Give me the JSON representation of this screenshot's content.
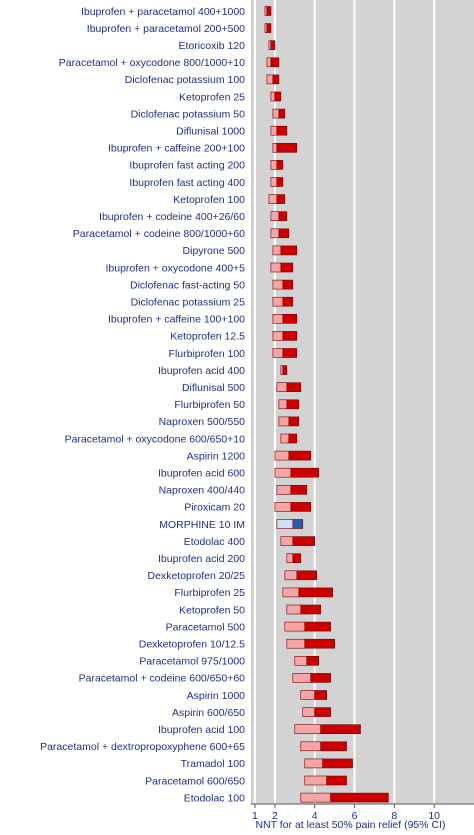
{
  "chart_data": {
    "type": "bar",
    "xlabel": "NNT for at least 50% pain relief (95% CI)",
    "xlim": [
      0.8,
      12
    ],
    "xticks": [
      1,
      2,
      4,
      6,
      8,
      10
    ],
    "grid": true,
    "colors": {
      "background": "#d3d3d3",
      "grid": "#ffffff",
      "ci_low": "#f4a6a6",
      "ci_high": "#cc0000",
      "highlight_low": "#cfe0f5",
      "highlight_high": "#1f5fae",
      "border": "#7a0000",
      "text": "#1f2f8a"
    },
    "categories": [
      "Ibuprofen + paracetamol 400+1000",
      "Ibuprofen + paracetamol 200+500",
      "Etoricoxib 120",
      "Paracetamol + oxycodone 800/1000+10",
      "Diclofenac potassium 100",
      "Ketoprofen 25",
      "Diclofenac potassium 50",
      "Diflunisal 1000",
      "Ibuprofen + caffeine 200+100",
      "Ibuprofen fast acting 200",
      "Ibuprofen fast acting 400",
      "Ketoprofen 100",
      "Ibuprofen + codeine 400+26/60",
      "Paracetamol + codeine 800/1000+60",
      "Dipyrone 500",
      "Ibuprofen + oxycodone 400+5",
      "Diclofenac fast-acting 50",
      "Diclofenac potassium 25",
      "Ibuprofen + caffeine 100+100",
      "Ketoprofen 12.5",
      "Flurbiprofen 100",
      "Ibuprofen acid 400",
      "Diflunisal 500",
      "Flurbiprofen 50",
      "Naproxen 500/550",
      "Paracetamol + oxycodone 600/650+10",
      "Aspirin 1200",
      "Ibuprofen acid 600",
      "Naproxen 400/440",
      "Piroxicam 20",
      "MORPHINE 10 IM",
      "Etodolac 400",
      "Ibuprofen acid 200",
      "Dexketoprofen 20/25",
      "Flurbiprofen 25",
      "Ketoprofen 50",
      "Paracetamol 500",
      "Dexketoprofen 10/12.5",
      "Paracetamol 975/1000",
      "Paracetamol + codeine 600/650+60",
      "Aspirin 1000",
      "Aspirin 600/650",
      "Ibuprofen acid 100",
      "Paracetamol + dextropropoxyphene 600+65",
      "Tramadol 100",
      "Paracetamol 600/650",
      "Etodolac 100"
    ],
    "series": [
      {
        "lower": [
          1.5,
          1.5,
          1.7,
          1.6,
          1.6,
          1.8,
          1.9,
          1.8,
          1.9,
          1.8,
          1.8,
          1.7,
          1.8,
          1.8,
          1.9,
          1.8,
          1.9,
          1.9,
          1.9,
          1.9,
          1.9,
          2.3,
          2.1,
          2.2,
          2.2,
          2.3,
          2.0,
          2.0,
          2.1,
          2.0,
          2.1,
          2.3,
          2.6,
          2.5,
          2.4,
          2.6,
          2.5,
          2.6,
          3.0,
          2.9,
          3.3,
          3.4,
          3.0,
          3.3,
          3.5,
          3.5,
          3.3
        ],
        "point": [
          1.6,
          1.6,
          1.8,
          1.8,
          1.9,
          2.0,
          2.2,
          2.1,
          2.1,
          2.1,
          2.1,
          2.1,
          2.2,
          2.2,
          2.3,
          2.3,
          2.4,
          2.4,
          2.4,
          2.4,
          2.4,
          2.4,
          2.6,
          2.6,
          2.7,
          2.7,
          2.7,
          2.8,
          2.8,
          2.8,
          2.9,
          2.9,
          2.9,
          3.1,
          3.2,
          3.3,
          3.5,
          3.5,
          3.6,
          3.8,
          4.0,
          4.0,
          4.3,
          4.3,
          4.4,
          4.6,
          4.8
        ],
        "upper": [
          1.8,
          1.8,
          2.0,
          2.2,
          2.2,
          2.3,
          2.5,
          2.6,
          3.1,
          2.4,
          2.4,
          2.5,
          2.6,
          2.7,
          3.1,
          2.9,
          2.9,
          2.9,
          3.1,
          3.1,
          3.1,
          2.6,
          3.3,
          3.2,
          3.2,
          3.1,
          3.8,
          4.2,
          3.6,
          3.8,
          3.4,
          4.0,
          3.3,
          4.1,
          4.9,
          4.3,
          4.8,
          5.0,
          4.2,
          4.8,
          4.6,
          4.8,
          6.3,
          5.6,
          5.9,
          5.6,
          7.7
        ]
      }
    ],
    "highlight_category": "MORPHINE 10 IM"
  }
}
